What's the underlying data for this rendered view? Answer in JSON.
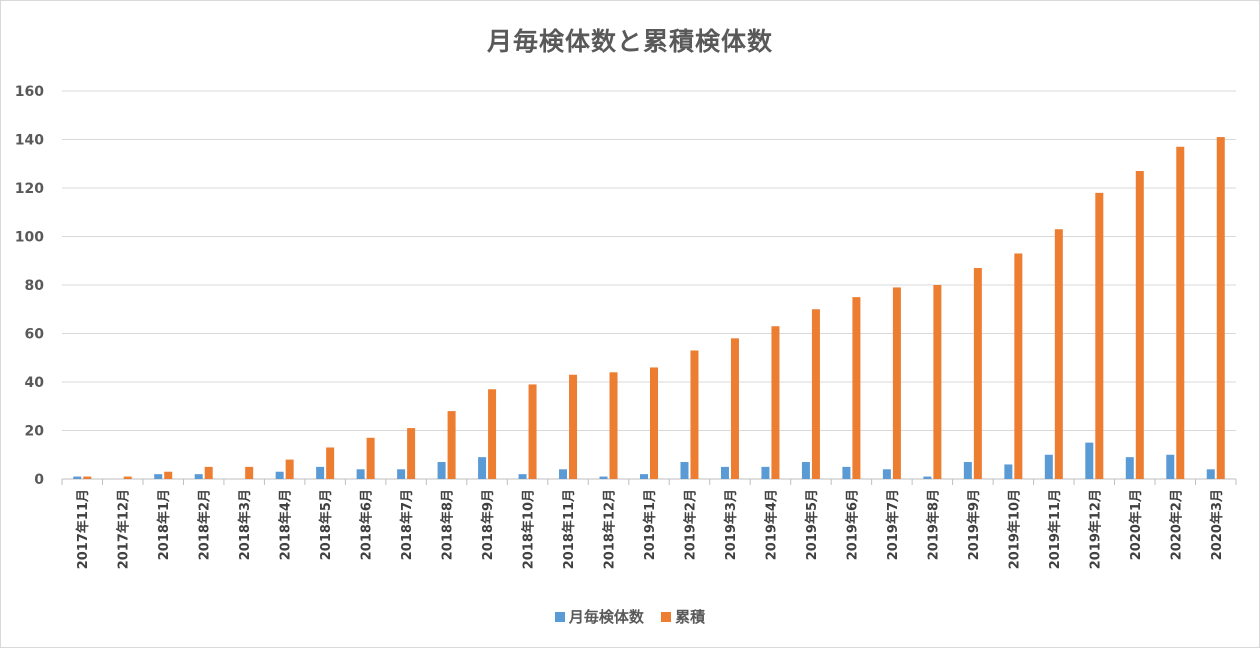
{
  "chart_data": {
    "type": "bar",
    "title": "月毎検体数と累積検体数",
    "categories": [
      "2017年11月",
      "2017年12月",
      "2018年1月",
      "2018年2月",
      "2018年3月",
      "2018年4月",
      "2018年5月",
      "2018年6月",
      "2018年7月",
      "2018年8月",
      "2018年9月",
      "2018年10月",
      "2018年11月",
      "2018年12月",
      "2019年1月",
      "2019年2月",
      "2019年3月",
      "2019年4月",
      "2019年5月",
      "2019年6月",
      "2019年7月",
      "2019年8月",
      "2019年9月",
      "2019年10月",
      "2019年11月",
      "2019年12月",
      "2020年1月",
      "2020年2月",
      "2020年3月"
    ],
    "series": [
      {
        "name": "月毎検体数",
        "color": "#5b9bd5",
        "values": [
          1,
          0,
          2,
          2,
          0,
          3,
          5,
          4,
          4,
          7,
          9,
          2,
          4,
          1,
          2,
          7,
          5,
          5,
          7,
          5,
          4,
          1,
          7,
          6,
          10,
          15,
          9,
          10,
          4
        ]
      },
      {
        "name": "累積",
        "color": "#ed7d31",
        "values": [
          1,
          1,
          3,
          5,
          5,
          8,
          13,
          17,
          21,
          28,
          37,
          39,
          43,
          44,
          46,
          53,
          58,
          63,
          70,
          75,
          79,
          80,
          87,
          93,
          103,
          118,
          127,
          137,
          141
        ]
      }
    ],
    "ylim": [
      0,
      160
    ],
    "yticks": [
      "0",
      "20",
      "40",
      "60",
      "80",
      "100",
      "120",
      "140",
      "160"
    ],
    "grid": true,
    "legend_position": "bottom"
  }
}
